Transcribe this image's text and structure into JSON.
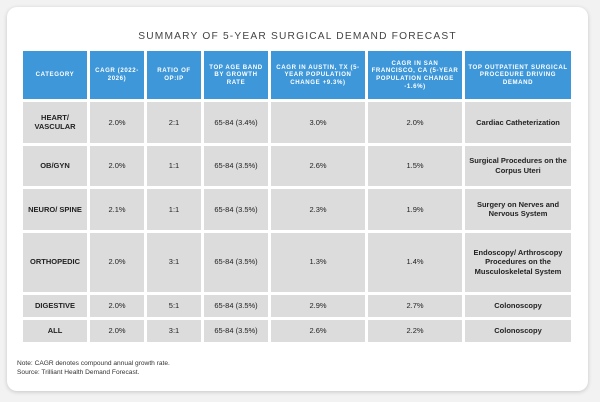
{
  "chart_data": {
    "type": "table",
    "title": "SUMMARY OF 5-YEAR SURGICAL DEMAND FORECAST",
    "columns": [
      "CATEGORY",
      "CAGR (2022-2026)",
      "RATIO OF OP:IP",
      "TOP AGE BAND BY GROWTH RATE",
      "CAGR IN AUSTIN, TX (5-YEAR POPULATION CHANGE +9.3%)",
      "CAGR IN SAN FRANCISCO, CA (5-YEAR POPULATION CHANGE -1.6%)",
      "TOP OUTPATIENT SURGICAL PROCEDURE DRIVING DEMAND"
    ],
    "rows": [
      [
        "HEART/ VASCULAR",
        "2.0%",
        "2:1",
        "65-84 (3.4%)",
        "3.0%",
        "2.0%",
        "Cardiac Catheterization"
      ],
      [
        "OB/GYN",
        "2.0%",
        "1:1",
        "65-84 (3.5%)",
        "2.6%",
        "1.5%",
        "Surgical Procedures on the Corpus Uteri"
      ],
      [
        "NEURO/ SPINE",
        "2.1%",
        "1:1",
        "65-84 (3.5%)",
        "2.3%",
        "1.9%",
        "Surgery on Nerves and Nervous System"
      ],
      [
        "ORTHOPEDIC",
        "2.0%",
        "3:1",
        "65-84 (3.5%)",
        "1.3%",
        "1.4%",
        "Endoscopy/ Arthroscopy Procedures on the Musculoskeletal System"
      ],
      [
        "DIGESTIVE",
        "2.0%",
        "5:1",
        "65-84 (3.5%)",
        "2.9%",
        "2.7%",
        "Colonoscopy"
      ],
      [
        "ALL",
        "2.0%",
        "3:1",
        "65-84 (3.5%)",
        "2.6%",
        "2.2%",
        "Colonoscopy"
      ]
    ]
  },
  "notes": {
    "line1": "Note: CAGR denotes compound annual growth rate.",
    "line2": "Source: Trilliant Health Demand Forecast."
  },
  "colors": {
    "header": "#3e97d9",
    "cell": "#dcdcdc"
  }
}
